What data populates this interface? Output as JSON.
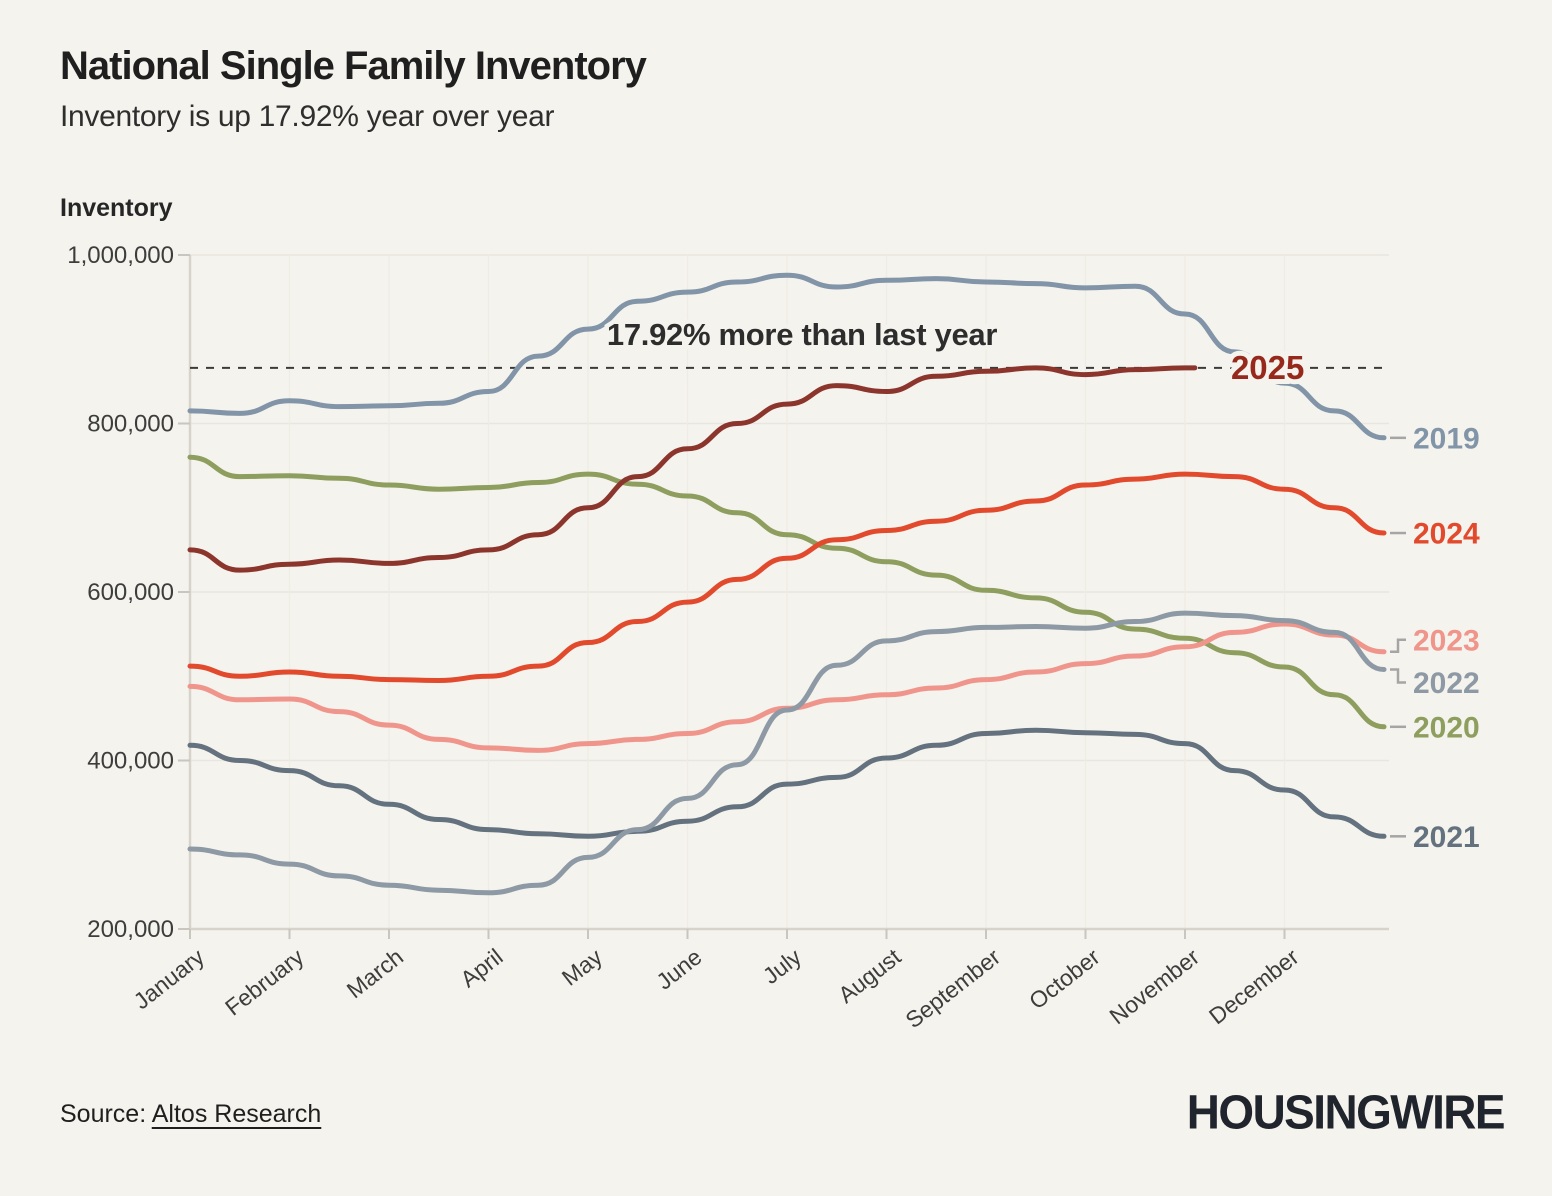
{
  "page": {
    "title": "National Single Family Inventory",
    "subtitle": "Inventory is up 17.92% year over year",
    "ylabel": "Inventory",
    "source_prefix": "Source: ",
    "source_link": "Altos Research",
    "logo": "HOUSINGWIRE"
  },
  "chart_data": {
    "type": "line",
    "title": "National Single Family Inventory",
    "subtitle": "Inventory is up 17.92% year over year",
    "ylabel": "Inventory",
    "x_labels": [
      "January",
      "February",
      "March",
      "April",
      "May",
      "June",
      "July",
      "August",
      "September",
      "October",
      "November",
      "December"
    ],
    "y_ticks": [
      200000,
      400000,
      600000,
      800000,
      1000000
    ],
    "ylim": [
      200000,
      1000000
    ],
    "xlim_months": [
      0,
      12.05
    ],
    "grid": true,
    "legend_position": "right-edge-labels",
    "reference_line": {
      "value": 866000,
      "label": "17.92% more than last year"
    },
    "colors": {
      "background": "#f5f3ed",
      "grid": "#e8e6df",
      "grid_vertical": "#eeece5",
      "axis": "#d5d3cb",
      "tick": "#c8c6bf",
      "tick_text": "#3d3d3d",
      "annotation_text": "#2d2d2d",
      "label_connector": "#a5a5a5"
    },
    "series": [
      {
        "name": "2020",
        "color": "#8d9e5e",
        "points": [
          [
            0,
            760000
          ],
          [
            0.5,
            737000
          ],
          [
            1,
            738000
          ],
          [
            1.5,
            735000
          ],
          [
            2,
            727000
          ],
          [
            2.5,
            722000
          ],
          [
            3,
            724000
          ],
          [
            3.5,
            730000
          ],
          [
            4,
            740000
          ],
          [
            4.5,
            728000
          ],
          [
            5,
            714000
          ],
          [
            5.5,
            694000
          ],
          [
            6,
            668000
          ],
          [
            6.5,
            652000
          ],
          [
            7,
            636000
          ],
          [
            7.5,
            620000
          ],
          [
            8,
            602000
          ],
          [
            8.5,
            593000
          ],
          [
            9,
            576000
          ],
          [
            9.5,
            556000
          ],
          [
            10,
            545000
          ],
          [
            10.5,
            528000
          ],
          [
            11,
            511000
          ],
          [
            11.5,
            478000
          ],
          [
            12,
            440000
          ]
        ]
      },
      {
        "name": "2021",
        "color": "#64717e",
        "points": [
          [
            0,
            418000
          ],
          [
            0.5,
            400000
          ],
          [
            1,
            388000
          ],
          [
            1.5,
            370000
          ],
          [
            2,
            348000
          ],
          [
            2.5,
            330000
          ],
          [
            3,
            318000
          ],
          [
            3.5,
            313000
          ],
          [
            4,
            310000
          ],
          [
            4.5,
            316000
          ],
          [
            5,
            328000
          ],
          [
            5.5,
            345000
          ],
          [
            6,
            372000
          ],
          [
            6.5,
            380000
          ],
          [
            7,
            403000
          ],
          [
            7.5,
            418000
          ],
          [
            8,
            432000
          ],
          [
            8.5,
            436000
          ],
          [
            9,
            433000
          ],
          [
            9.5,
            431000
          ],
          [
            10,
            420000
          ],
          [
            10.5,
            388000
          ],
          [
            11,
            365000
          ],
          [
            11.5,
            333000
          ],
          [
            12,
            310000
          ]
        ]
      },
      {
        "name": "2023",
        "color": "#f0958b",
        "points": [
          [
            0,
            488000
          ],
          [
            0.5,
            472000
          ],
          [
            1,
            473000
          ],
          [
            1.5,
            458000
          ],
          [
            2,
            442000
          ],
          [
            2.5,
            425000
          ],
          [
            3,
            415000
          ],
          [
            3.5,
            412000
          ],
          [
            4,
            420000
          ],
          [
            4.5,
            425000
          ],
          [
            5,
            432000
          ],
          [
            5.5,
            446000
          ],
          [
            6,
            462000
          ],
          [
            6.5,
            472000
          ],
          [
            7,
            478000
          ],
          [
            7.5,
            486000
          ],
          [
            8,
            496000
          ],
          [
            8.5,
            505000
          ],
          [
            9,
            515000
          ],
          [
            9.5,
            524000
          ],
          [
            10,
            535000
          ],
          [
            10.5,
            552000
          ],
          [
            11,
            562000
          ],
          [
            11.5,
            549000
          ],
          [
            12,
            529000
          ]
        ]
      },
      {
        "name": "2022",
        "color": "#8d99a4",
        "points": [
          [
            0,
            295000
          ],
          [
            0.5,
            288000
          ],
          [
            1,
            277000
          ],
          [
            1.5,
            263000
          ],
          [
            2,
            252000
          ],
          [
            2.5,
            246000
          ],
          [
            3,
            243000
          ],
          [
            3.5,
            252000
          ],
          [
            4,
            285000
          ],
          [
            4.5,
            318000
          ],
          [
            5,
            355000
          ],
          [
            5.5,
            395000
          ],
          [
            6,
            460000
          ],
          [
            6.5,
            513000
          ],
          [
            7,
            542000
          ],
          [
            7.5,
            553000
          ],
          [
            8,
            558000
          ],
          [
            8.5,
            559000
          ],
          [
            9,
            557000
          ],
          [
            9.5,
            565000
          ],
          [
            10,
            575000
          ],
          [
            10.5,
            572000
          ],
          [
            11,
            566000
          ],
          [
            11.5,
            552000
          ],
          [
            12,
            508000
          ]
        ]
      },
      {
        "name": "2019",
        "color": "#8194a8",
        "points": [
          [
            0,
            815000
          ],
          [
            0.5,
            812000
          ],
          [
            1,
            827000
          ],
          [
            1.5,
            820000
          ],
          [
            2,
            821000
          ],
          [
            2.5,
            824000
          ],
          [
            3,
            838000
          ],
          [
            3.5,
            880000
          ],
          [
            4,
            912000
          ],
          [
            4.5,
            945000
          ],
          [
            5,
            956000
          ],
          [
            5.5,
            968000
          ],
          [
            6,
            976000
          ],
          [
            6.5,
            962000
          ],
          [
            7,
            970000
          ],
          [
            7.5,
            972000
          ],
          [
            8,
            968000
          ],
          [
            8.5,
            966000
          ],
          [
            9,
            961000
          ],
          [
            9.5,
            963000
          ],
          [
            10,
            930000
          ],
          [
            10.5,
            885000
          ],
          [
            11,
            848000
          ],
          [
            11.5,
            815000
          ],
          [
            12,
            783000
          ]
        ]
      },
      {
        "name": "2024",
        "color": "#e24a2d",
        "points": [
          [
            0,
            512000
          ],
          [
            0.5,
            500000
          ],
          [
            1,
            505000
          ],
          [
            1.5,
            500000
          ],
          [
            2,
            496000
          ],
          [
            2.5,
            495000
          ],
          [
            3,
            500000
          ],
          [
            3.5,
            512000
          ],
          [
            4,
            540000
          ],
          [
            4.5,
            565000
          ],
          [
            5,
            588000
          ],
          [
            5.5,
            615000
          ],
          [
            6,
            640000
          ],
          [
            6.5,
            662000
          ],
          [
            7,
            673000
          ],
          [
            7.5,
            684000
          ],
          [
            8,
            697000
          ],
          [
            8.5,
            708000
          ],
          [
            9,
            727000
          ],
          [
            9.5,
            734000
          ],
          [
            10,
            740000
          ],
          [
            10.5,
            737000
          ],
          [
            11,
            722000
          ],
          [
            11.5,
            700000
          ],
          [
            12,
            670000
          ]
        ]
      },
      {
        "name": "2025",
        "color": "#8c352c",
        "label_color": "#96291c",
        "label_on_line": true,
        "points": [
          [
            0,
            650000
          ],
          [
            0.5,
            626000
          ],
          [
            1,
            633000
          ],
          [
            1.5,
            638000
          ],
          [
            2,
            634000
          ],
          [
            2.5,
            641000
          ],
          [
            3,
            650000
          ],
          [
            3.5,
            668000
          ],
          [
            4,
            700000
          ],
          [
            4.5,
            737000
          ],
          [
            5,
            770000
          ],
          [
            5.5,
            800000
          ],
          [
            6,
            823000
          ],
          [
            6.5,
            845000
          ],
          [
            7,
            838000
          ],
          [
            7.5,
            856000
          ],
          [
            8,
            862000
          ],
          [
            8.5,
            866000
          ],
          [
            9,
            858000
          ],
          [
            9.5,
            864000
          ],
          [
            10,
            866000
          ],
          [
            10.1,
            866000
          ]
        ]
      }
    ]
  }
}
